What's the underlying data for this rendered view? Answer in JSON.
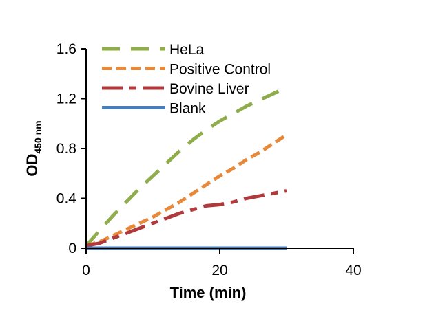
{
  "chart_data": {
    "type": "line",
    "xlabel": "Time (min)",
    "ylabel": {
      "main": "OD",
      "sub": "450 nm"
    },
    "xlim": [
      0,
      40
    ],
    "ylim": [
      0,
      1.6
    ],
    "xticks": [
      "0",
      "20",
      "40"
    ],
    "yticks": [
      "0",
      "0.4",
      "0.8",
      "1.2",
      "1.6"
    ],
    "grid": false,
    "legend_position": "top-left",
    "series": [
      {
        "name": "HeLa",
        "color": "#8FAE4B",
        "style": "long-dash",
        "x": [
          0,
          2,
          4,
          6,
          8,
          10,
          12,
          14,
          16,
          18,
          20,
          22,
          24,
          26,
          28,
          30
        ],
        "y": [
          0.02,
          0.14,
          0.26,
          0.37,
          0.48,
          0.58,
          0.68,
          0.78,
          0.87,
          0.95,
          1.02,
          1.08,
          1.14,
          1.19,
          1.24,
          1.29
        ]
      },
      {
        "name": "Positive Control",
        "color": "#E8883A",
        "style": "dash",
        "x": [
          0,
          2,
          4,
          6,
          8,
          10,
          12,
          14,
          16,
          18,
          20,
          22,
          24,
          26,
          28,
          30
        ],
        "y": [
          0.02,
          0.05,
          0.1,
          0.15,
          0.2,
          0.25,
          0.31,
          0.37,
          0.44,
          0.51,
          0.58,
          0.64,
          0.71,
          0.77,
          0.84,
          0.91
        ]
      },
      {
        "name": "Bovine Liver",
        "color": "#B0393B",
        "style": "dash-dot",
        "x": [
          0,
          2,
          4,
          6,
          8,
          10,
          12,
          14,
          16,
          18,
          20,
          22,
          24,
          26,
          28,
          30
        ],
        "y": [
          0.02,
          0.04,
          0.08,
          0.12,
          0.16,
          0.2,
          0.24,
          0.28,
          0.31,
          0.34,
          0.35,
          0.37,
          0.4,
          0.42,
          0.44,
          0.46
        ]
      },
      {
        "name": "Blank",
        "color": "#4A7EBB",
        "style": "solid",
        "x": [
          0,
          30
        ],
        "y": [
          0.0,
          0.0
        ]
      }
    ]
  }
}
